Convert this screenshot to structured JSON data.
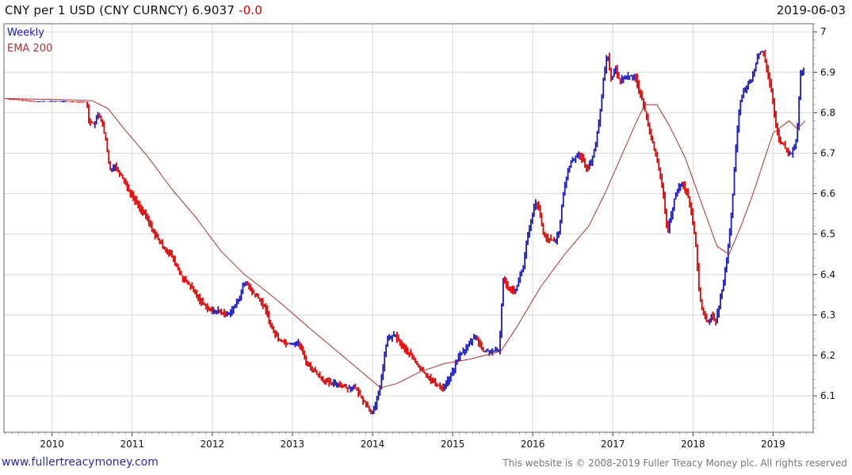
{
  "header": {
    "title": "CNY per 1 USD (CNY CURNCY)",
    "last": "6.9037",
    "change": "-0.0",
    "date": "2019-06-03"
  },
  "footer": {
    "site": "www.fullertreacymoney.com",
    "copyright": "This website is © 2008-2019 Fuller Treacy Money plc. All rights reserved"
  },
  "colors": {
    "up": "#1a1ab4",
    "down": "#e00000",
    "ema": "#a83232",
    "grid": "#d8d8d8",
    "weekly_legend": "#1a1ab4",
    "ema_legend": "#a83232"
  },
  "chart_data": {
    "type": "line",
    "title": "CNY per 1 USD (CNY CURNCY)",
    "legend": {
      "placement": "top-left",
      "entries": [
        "Weekly",
        "EMA 200"
      ]
    },
    "xlim": [
      2009.4,
      2019.5
    ],
    "ylim": [
      6.01,
      7.02
    ],
    "x_ticks": [
      "2010",
      "2011",
      "2012",
      "2013",
      "2014",
      "2015",
      "2016",
      "2017",
      "2018",
      "2019"
    ],
    "y_ticks": [
      "6.1",
      "6.2",
      "6.3",
      "6.4",
      "6.5",
      "6.6",
      "6.7",
      "6.8",
      "6.9",
      "7"
    ],
    "y_axis_side": "right",
    "grid": true,
    "series": [
      {
        "name": "Weekly",
        "x": [
          2009.42,
          2009.8,
          2010.2,
          2010.45,
          2010.48,
          2010.55,
          2010.6,
          2010.65,
          2010.7,
          2010.72,
          2010.75,
          2010.8,
          2010.9,
          2011.0,
          2011.1,
          2011.2,
          2011.3,
          2011.4,
          2011.5,
          2011.55,
          2011.65,
          2011.75,
          2011.85,
          2012.0,
          2012.1,
          2012.2,
          2012.3,
          2012.35,
          2012.4,
          2012.45,
          2012.5,
          2012.6,
          2012.7,
          2012.75,
          2012.85,
          2012.95,
          2013.1,
          2013.2,
          2013.3,
          2013.4,
          2013.5,
          2013.6,
          2013.7,
          2013.8,
          2013.9,
          2014.0,
          2014.05,
          2014.1,
          2014.15,
          2014.2,
          2014.3,
          2014.4,
          2014.5,
          2014.6,
          2014.7,
          2014.8,
          2014.9,
          2015.0,
          2015.1,
          2015.2,
          2015.3,
          2015.4,
          2015.5,
          2015.55,
          2015.6,
          2015.65,
          2015.7,
          2015.8,
          2015.9,
          2015.95,
          2016.0,
          2016.05,
          2016.1,
          2016.15,
          2016.2,
          2016.3,
          2016.35,
          2016.4,
          2016.45,
          2016.5,
          2016.6,
          2016.7,
          2016.75,
          2016.8,
          2016.85,
          2016.9,
          2016.95,
          2017.0,
          2017.05,
          2017.1,
          2017.2,
          2017.3,
          2017.35,
          2017.4,
          2017.45,
          2017.5,
          2017.55,
          2017.6,
          2017.65,
          2017.7,
          2017.75,
          2017.8,
          2017.85,
          2017.9,
          2017.95,
          2018.0,
          2018.05,
          2018.1,
          2018.15,
          2018.2,
          2018.25,
          2018.3,
          2018.35,
          2018.4,
          2018.45,
          2018.5,
          2018.55,
          2018.6,
          2018.65,
          2018.7,
          2018.75,
          2018.8,
          2018.85,
          2018.9,
          2018.95,
          2019.0,
          2019.05,
          2019.1,
          2019.15,
          2019.2,
          2019.25,
          2019.3,
          2019.33,
          2019.36,
          2019.4
        ],
        "values": [
          6.835,
          6.828,
          6.828,
          6.826,
          6.78,
          6.77,
          6.8,
          6.77,
          6.72,
          6.68,
          6.66,
          6.67,
          6.64,
          6.6,
          6.57,
          6.54,
          6.5,
          6.47,
          6.45,
          6.43,
          6.39,
          6.37,
          6.34,
          6.31,
          6.31,
          6.3,
          6.32,
          6.34,
          6.37,
          6.38,
          6.36,
          6.34,
          6.31,
          6.27,
          6.24,
          6.23,
          6.23,
          6.18,
          6.16,
          6.14,
          6.13,
          6.13,
          6.12,
          6.12,
          6.09,
          6.06,
          6.07,
          6.11,
          6.17,
          6.24,
          6.25,
          6.22,
          6.2,
          6.17,
          6.15,
          6.13,
          6.12,
          6.15,
          6.2,
          6.22,
          6.25,
          6.21,
          6.21,
          6.21,
          6.21,
          6.39,
          6.37,
          6.36,
          6.42,
          6.49,
          6.53,
          6.58,
          6.56,
          6.5,
          6.49,
          6.48,
          6.51,
          6.6,
          6.65,
          6.68,
          6.7,
          6.66,
          6.68,
          6.72,
          6.78,
          6.88,
          6.95,
          6.88,
          6.91,
          6.88,
          6.89,
          6.89,
          6.85,
          6.82,
          6.78,
          6.74,
          6.7,
          6.65,
          6.6,
          6.5,
          6.55,
          6.6,
          6.62,
          6.62,
          6.6,
          6.55,
          6.48,
          6.35,
          6.3,
          6.28,
          6.3,
          6.28,
          6.33,
          6.38,
          6.45,
          6.55,
          6.7,
          6.82,
          6.85,
          6.87,
          6.88,
          6.92,
          6.95,
          6.95,
          6.9,
          6.85,
          6.77,
          6.73,
          6.72,
          6.7,
          6.7,
          6.72,
          6.78,
          6.9,
          6.9
        ]
      },
      {
        "name": "EMA 200",
        "x": [
          2009.42,
          2010.2,
          2010.5,
          2010.7,
          2010.9,
          2011.2,
          2011.5,
          2011.8,
          2012.1,
          2012.4,
          2012.6,
          2012.85,
          2013.2,
          2013.5,
          2013.8,
          2014.1,
          2014.3,
          2014.6,
          2014.9,
          2015.2,
          2015.6,
          2015.8,
          2016.1,
          2016.4,
          2016.7,
          2016.9,
          2017.1,
          2017.3,
          2017.4,
          2017.55,
          2017.7,
          2017.9,
          2018.1,
          2018.3,
          2018.45,
          2018.6,
          2018.75,
          2018.9,
          2019.0,
          2019.2,
          2019.3,
          2019.4
        ],
        "values": [
          6.835,
          6.832,
          6.83,
          6.81,
          6.76,
          6.69,
          6.61,
          6.54,
          6.46,
          6.4,
          6.37,
          6.33,
          6.27,
          6.22,
          6.17,
          6.12,
          6.13,
          6.16,
          6.18,
          6.19,
          6.21,
          6.27,
          6.37,
          6.45,
          6.52,
          6.6,
          6.69,
          6.78,
          6.82,
          6.82,
          6.77,
          6.69,
          6.58,
          6.47,
          6.45,
          6.52,
          6.6,
          6.69,
          6.75,
          6.78,
          6.76,
          6.78
        ]
      }
    ]
  }
}
